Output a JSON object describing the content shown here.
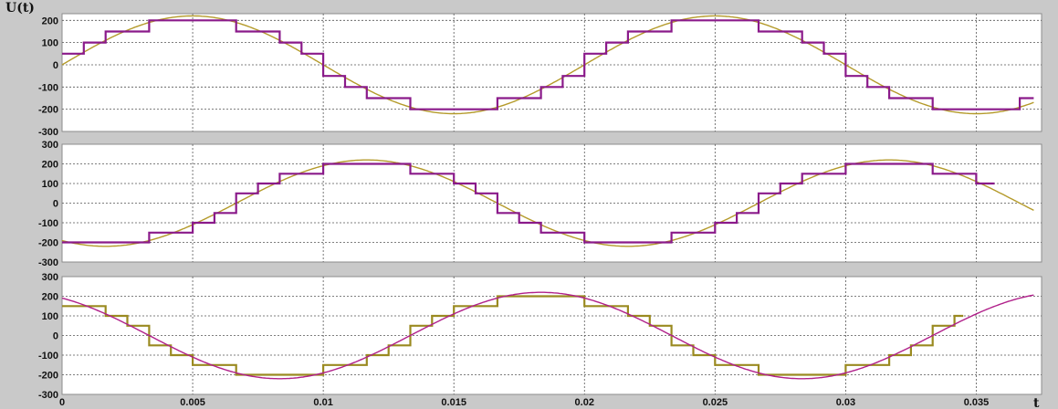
{
  "chart_data": [
    {
      "type": "line",
      "panel": "top",
      "ylabel": "U(t)",
      "xlim": [
        0,
        0.0375
      ],
      "ylim": [
        -300,
        230
      ],
      "y_ticks": [
        200,
        100,
        0,
        -100,
        -200,
        -300
      ],
      "y_tick_labels": [
        "200",
        "100",
        "0",
        "-100",
        "-200",
        "-300"
      ],
      "x_grid": [
        0.005,
        0.01,
        0.015,
        0.02,
        0.025,
        0.03,
        0.035
      ],
      "grid": true,
      "series": [
        {
          "role": "sine",
          "color": "#b49a2a",
          "amplitude": 220,
          "frequency_hz": 50,
          "phase_deg": 0,
          "x_end": 0.0372
        },
        {
          "role": "stepped",
          "color": "#8a1a8a",
          "amplitude": 220,
          "frequency_hz": 50,
          "phase_deg": 0,
          "step_s": 0.0008333,
          "x_end": 0.0372
        }
      ]
    },
    {
      "type": "line",
      "panel": "middle",
      "ylabel": "",
      "xlim": [
        0,
        0.0375
      ],
      "ylim": [
        -300,
        300
      ],
      "y_ticks": [
        300,
        200,
        100,
        0,
        -100,
        -200,
        -300
      ],
      "y_tick_labels": [
        "300",
        "200",
        "100",
        "0",
        "-100",
        "-200",
        "-300"
      ],
      "x_grid": [
        0.005,
        0.01,
        0.015,
        0.02,
        0.025,
        0.03,
        0.035
      ],
      "grid": true,
      "series": [
        {
          "role": "sine",
          "color": "#b49a2a",
          "amplitude": 220,
          "frequency_hz": 50,
          "phase_deg": -120,
          "x_end": 0.0372
        },
        {
          "role": "stepped",
          "color": "#8a1a8a",
          "amplitude": 220,
          "frequency_hz": 50,
          "phase_deg": -120,
          "step_s": 0.0008333,
          "x_end": 0.0357
        }
      ]
    },
    {
      "type": "line",
      "panel": "bottom",
      "ylabel": "",
      "xlabel": "t",
      "xlim": [
        0,
        0.0375
      ],
      "ylim": [
        -300,
        300
      ],
      "y_ticks": [
        300,
        200,
        100,
        0,
        -100,
        -200,
        -300
      ],
      "y_tick_labels": [
        "300",
        "200",
        "100",
        "0",
        "-100",
        "-200",
        "-300"
      ],
      "x_ticks": [
        0,
        0.005,
        0.01,
        0.015,
        0.02,
        0.025,
        0.03,
        0.035
      ],
      "x_tick_labels": [
        "0",
        "0.005",
        "0.01",
        "0.015",
        "0.02",
        "0.025",
        "0.03",
        "0.035"
      ],
      "x_grid": [
        0.005,
        0.01,
        0.015,
        0.02,
        0.025,
        0.03,
        0.035
      ],
      "grid": true,
      "series": [
        {
          "role": "stepped",
          "color": "#9a8a20",
          "amplitude": 220,
          "frequency_hz": 50,
          "phase_deg": 120,
          "step_s": 0.0008333,
          "x_end": 0.0345
        },
        {
          "role": "sine",
          "color": "#b0208a",
          "amplitude": 220,
          "frequency_hz": 50,
          "phase_deg": 120,
          "x_end": 0.0372
        }
      ]
    }
  ]
}
